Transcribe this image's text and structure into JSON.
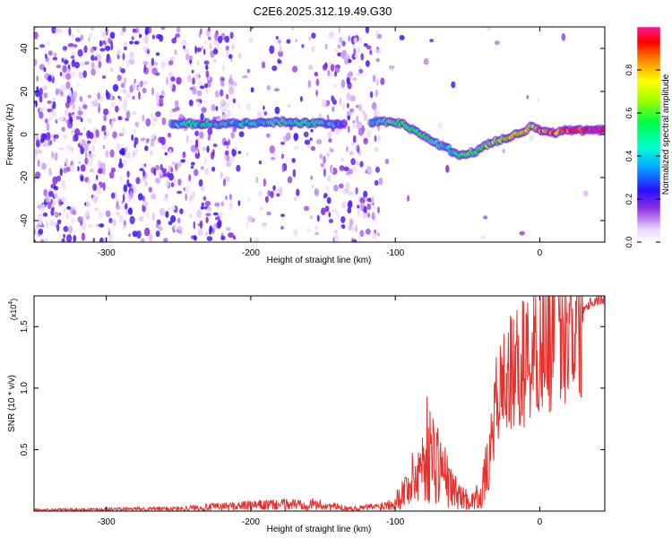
{
  "title": "C2E6.2025.312.19.49.G30",
  "chart_data": [
    {
      "type": "heatmap",
      "xlabel": "Height of straight line (km)",
      "ylabel": "Frequency (Hz)",
      "xlim": [
        -350,
        45
      ],
      "ylim": [
        -50,
        50
      ],
      "xticks": [
        -300,
        -200,
        -100,
        0
      ],
      "yticks": [
        -40,
        -20,
        0,
        20,
        40
      ],
      "colorbar": {
        "label": "Normalized spectral amplitude",
        "range": [
          0.0,
          1.0
        ],
        "ticks": [
          0.0,
          0.2,
          0.4,
          0.6,
          0.8
        ],
        "tick_labels": [
          "0.0",
          "0.2",
          "0.4",
          "0.6",
          "0.8"
        ]
      },
      "ridge": {
        "x": [
          -255,
          -230,
          -200,
          -180,
          -150,
          -130,
          -110,
          -95,
          -85,
          -75,
          -65,
          -55,
          -45,
          -35,
          -20,
          -10,
          -5,
          0,
          10,
          20,
          45
        ],
        "y": [
          5,
          5,
          5,
          6,
          5,
          5,
          6,
          5,
          1,
          -3,
          -6,
          -10,
          -8,
          -4,
          -1,
          2,
          4,
          2,
          1,
          2,
          2
        ],
        "amplitude": [
          0.35,
          0.45,
          0.4,
          0.5,
          0.45,
          0.2,
          0.5,
          0.6,
          0.55,
          0.5,
          0.45,
          0.5,
          0.55,
          0.6,
          0.7,
          0.75,
          0.65,
          0.8,
          0.85,
          0.9,
          0.95
        ]
      }
    },
    {
      "type": "line",
      "xlabel": "Height of straight line (km)",
      "ylabel": "SNR (10 * v/v)",
      "exponent_label": "(x10",
      "exponent_sup": "4",
      "exponent_close": ")",
      "xlim": [
        -350,
        45
      ],
      "ylim": [
        0,
        1.75
      ],
      "xticks": [
        -300,
        -200,
        -100,
        0
      ],
      "yticks": [
        0.5,
        1.0,
        1.5
      ],
      "ytick_labels": [
        "0.5",
        "1.0",
        "1.5"
      ],
      "series": [
        {
          "name": "SNR",
          "color": "#e8312c",
          "x": [
            -350,
            -250,
            -215,
            -160,
            -130,
            -110,
            -100,
            -95,
            -85,
            -78,
            -70,
            -62,
            -55,
            -47,
            -40,
            -36,
            -33,
            -30,
            -25,
            -15,
            -5,
            5,
            15,
            25,
            35,
            45
          ],
          "y": [
            0.01,
            0.02,
            0.04,
            0.06,
            0.02,
            0.04,
            0.08,
            0.15,
            0.3,
            0.5,
            0.4,
            0.2,
            0.12,
            0.08,
            0.15,
            0.35,
            0.6,
            0.9,
            1.05,
            1.15,
            1.3,
            1.4,
            1.55,
            1.6,
            1.7,
            1.73
          ]
        }
      ]
    }
  ]
}
